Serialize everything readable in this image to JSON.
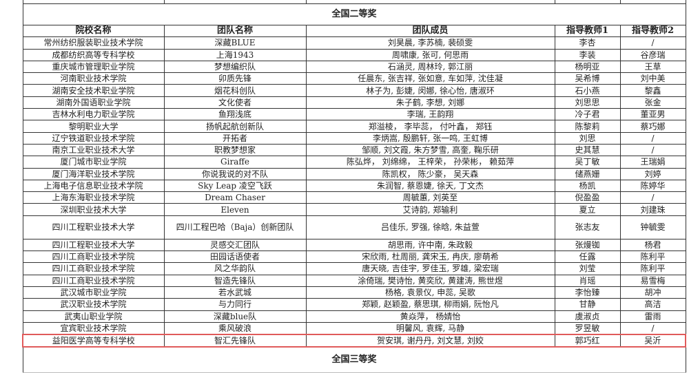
{
  "section_title": "全国二等奖",
  "next_section_title": "全国三等奖",
  "headers": [
    "院校名称",
    "团队名称",
    "团队成员",
    "指导教师1",
    "指导教师2"
  ],
  "highlight_color": "#e05a5a",
  "rows": [
    [
      "常州纺织服装职业技术学院",
      "深藏BLUE",
      "刘昊晨, 李苏楠, 裴硕雯",
      "李杏",
      "/"
    ],
    [
      "成都纺织高等专科学校",
      "上海1943",
      "周啸康, 张可, 何思雨",
      "李装",
      "谷彦瑞"
    ],
    [
      "重庆城市管理职业学院",
      "梦想编织队",
      "石涵灵, 周林玲, 郭江丽",
      "杨明亚",
      "王草"
    ],
    [
      "河南职业技术学院",
      "卯质先锋",
      "任晨东, 张吉祥, 张如意, 车如萍, 沈佳凝",
      "吴希博",
      "刘中美"
    ],
    [
      "湖南安全技术职业学院",
      "烟花科创队",
      "林子为, 彭婕, 闵娜, 徐心怡, 唐淑环",
      "石小燕",
      "黎鑫"
    ],
    [
      "湖南外国语职业学院",
      "文化使者",
      "朱子鹤, 李想, 刘娜",
      "刘思思",
      "张金"
    ],
    [
      "吉林水利电力职业学院",
      "鱼翔浅底",
      "李瑞, 王韵翔",
      "冷子君",
      "董亚男"
    ],
    [
      "黎明职业大学",
      "扬帆起航创新队",
      "郑溢棱， 李毕蕊， 付叶鑫， 郑钰",
      "陈黎莉",
      "蔡巧娜"
    ],
    [
      "辽宁铁道职业技术学院",
      "开拓者",
      "李炳嵩, 殷鹏轩, 张一鸣, 王虹博",
      "刘思",
      "/"
    ],
    [
      "南京工业职业技术大学",
      "职教梦想家",
      "邹顺, 刘文霞, 朱方梦雪, 高奎, 鞠乐研",
      "史其慧",
      "/"
    ],
    [
      "厦门城市职业学院",
      "Giraffe",
      "陈弘烨， 刘绵绵， 王梓荣， 孙荣彬， 赖茹萍",
      "吴丁敏",
      "王瑞娟"
    ],
    [
      "厦门海洋职业技术学院",
      "你说我说的对不队",
      "陈凯权， 陈少豪， 吴天森",
      "储燕姗",
      "刘婷"
    ],
    [
      "上海电子信息职业技术学院",
      "Sky Leap 凌空飞跃",
      "朱润智, 蔡恩婕, 徐天, 丁文杰",
      "杨凯",
      "陈婷华"
    ],
    [
      "上海东海职业技术学院",
      "Dream Chaser",
      "周毓蕙, 刘英至",
      "倪盈盈",
      "/"
    ],
    [
      "深圳职业技术大学",
      "Eleven",
      "艾诗韵, 郑输利",
      "夏立",
      "刘建珠"
    ],
    [
      "四川工程职业技术大学",
      "四川工程巴哈（Baja）创新团队",
      "吕佳乐, 罗强, 徐晗, 朱益萱",
      "张志友",
      "钟毓雯"
    ],
    [
      "四川工程职业技术大学",
      "灵感交汇团队",
      "胡思雨, 许中南, 朱政毅",
      "张熳铷",
      "杨君"
    ],
    [
      "四川工商职业技术学院",
      "田园话语使者",
      "宋欣雨, 杜周丽, 龚宋玉, 冉庆, 廖萌希",
      "任露",
      "陈利平"
    ],
    [
      "四川工商职业技术学院",
      "风之华韵队",
      "唐天晓, 吉佳宇, 罗佳玉, 罗雄, 梁宏瑞",
      "刘莹",
      "陈利平"
    ],
    [
      "四川工商职业技术学院",
      "智造先锋队",
      "涂倚瑞, 樊诗怡, 黄奕欣, 黄建涛, 熊世煜",
      "肖瑶",
      "易雪梅"
    ],
    [
      "武汉城市职业学院",
      "若水武城",
      "杨格, 袁景仪, 申蕊, 吴歌",
      "李怡臻",
      "胡冲"
    ],
    [
      "武汉职业技术学院",
      "与力同行",
      "郑颖, 赵颖盈, 蔡思琪, 柳雨娟, 阮怡凡",
      "甘静",
      "高洁"
    ],
    [
      "武夷山职业学院",
      "深藏blue队",
      "黄焱萍， 杨婧怡",
      "虞淑贞",
      "雷雨"
    ],
    [
      "宜宾职业技术学院",
      "乘风破浪",
      "明馨风, 袁辉, 马静",
      "罗昱敏",
      "/"
    ],
    [
      "益阳医学高等专科学校",
      "智汇先锋队",
      "贺安琪, 谢丹丹, 刘文慧, 刘姣",
      "郭巧红",
      "吴沂"
    ]
  ]
}
